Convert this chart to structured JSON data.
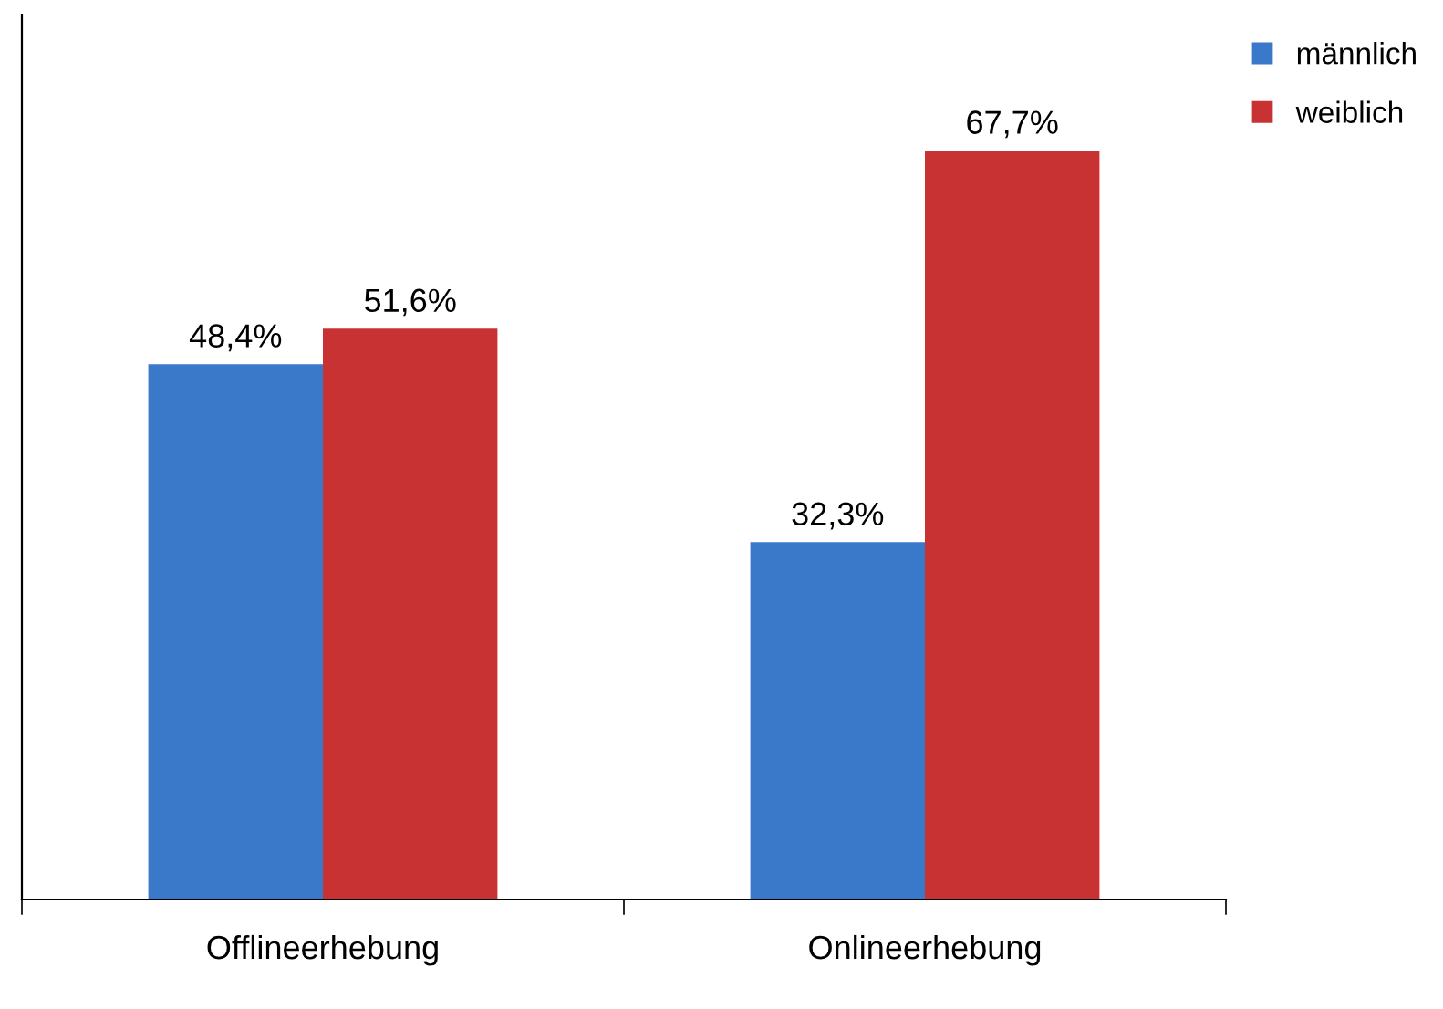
{
  "chart_data": {
    "type": "bar",
    "categories": [
      "Offlineerhebung",
      "Onlineerhebung"
    ],
    "series": [
      {
        "name": "männlich",
        "color": "#3a78c9",
        "values": [
          48.4,
          32.3
        ],
        "value_labels": [
          "48,4%",
          "32,3%"
        ]
      },
      {
        "name": "weiblich",
        "color": "#c83232",
        "values": [
          51.6,
          67.7
        ],
        "value_labels": [
          "51,6%",
          "67,7%"
        ]
      }
    ],
    "ylim": [
      0,
      80
    ],
    "tick_labels": "x",
    "legend": "top right",
    "grid": false
  }
}
